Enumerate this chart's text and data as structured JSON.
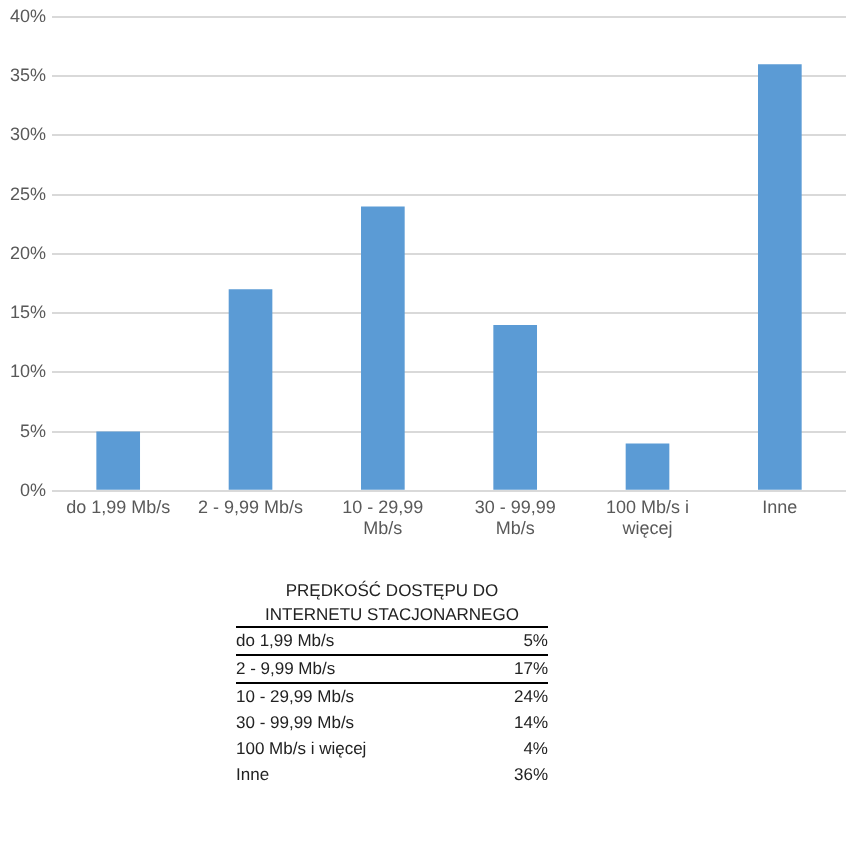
{
  "chart_data": [
    {
      "type": "bar",
      "categories": [
        "do 1,99 Mb/s",
        "2 - 9,99 Mb/s",
        "10 - 29,99 Mb/s",
        "30 - 99,99 Mb/s",
        "100 Mb/s i więcej",
        "Inne"
      ],
      "values": [
        5,
        17,
        24,
        14,
        4,
        36
      ],
      "color": "#5b9bd5",
      "ylim": [
        0,
        40
      ],
      "yticks": [
        {
          "value": 0,
          "label": "0%"
        },
        {
          "value": 5,
          "label": "5%"
        },
        {
          "value": 10,
          "label": "10%"
        },
        {
          "value": 15,
          "label": "15%"
        },
        {
          "value": 20,
          "label": "20%"
        },
        {
          "value": 25,
          "label": "25%"
        },
        {
          "value": 30,
          "label": "30%"
        },
        {
          "value": 35,
          "label": "35%"
        },
        {
          "value": 40,
          "label": "40%"
        }
      ],
      "grid": "y"
    },
    {
      "type": "other",
      "title": "PRĘDKOŚĆ DOSTĘPU DO INTERNETU STACJONARNEGO",
      "annotations": [
        "do 1,99 Mb/s",
        "5%",
        "2 - 9,99 Mb/s",
        "17%",
        "10 - 29,99 Mb/s",
        "24%",
        "30 - 99,99 Mb/s",
        "14%",
        "100 Mb/s i więcej",
        "4%",
        "Inne",
        "36%"
      ]
    }
  ]
}
